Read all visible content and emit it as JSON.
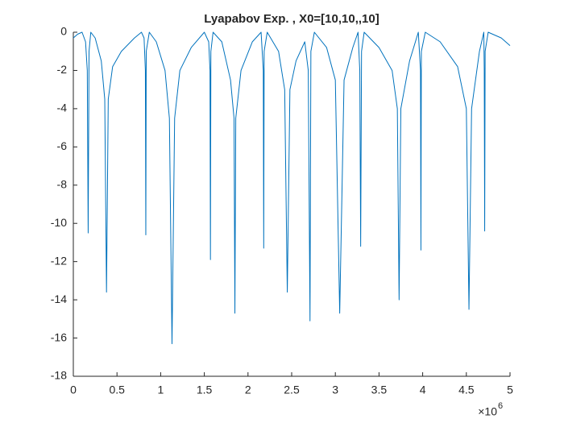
{
  "chart_data": {
    "type": "line",
    "title": "Lyapabov Exp. , X0=[10,10,,10]",
    "x_exponent_base": "×10",
    "x_exponent": "6",
    "x": [
      0,
      50000,
      100000,
      140000,
      160000,
      170000,
      180000,
      200000,
      250000,
      320000,
      360000,
      380000,
      400000,
      450000,
      550000,
      700000,
      780000,
      810000,
      825000,
      830000,
      835000,
      870000,
      950000,
      1050000,
      1100000,
      1130000,
      1160000,
      1220000,
      1350000,
      1500000,
      1550000,
      1565000,
      1570000,
      1575000,
      1600000,
      1700000,
      1800000,
      1840000,
      1850000,
      1860000,
      1920000,
      2050000,
      2150000,
      2175000,
      2180000,
      2185000,
      2220000,
      2350000,
      2420000,
      2450000,
      2480000,
      2550000,
      2650000,
      2690000,
      2710000,
      2720000,
      2760000,
      2900000,
      3000000,
      3050000,
      3100000,
      3200000,
      3260000,
      3280000,
      3290000,
      3300000,
      3330000,
      3500000,
      3650000,
      3710000,
      3730000,
      3750000,
      3850000,
      3950000,
      3975000,
      3980000,
      3985000,
      4030000,
      4200000,
      4400000,
      4500000,
      4530000,
      4560000,
      4650000,
      4700000,
      4705000,
      4710000,
      4715000,
      4750000,
      4900000,
      5000000
    ],
    "series": [
      {
        "color": "#0072bd",
        "values": [
          -0.3,
          -0.1,
          0,
          -0.5,
          -2,
          -10.5,
          -1,
          0,
          -0.3,
          -1.5,
          -3.5,
          -13.6,
          -3.5,
          -1.8,
          -1,
          -0.3,
          0,
          -0.3,
          -2,
          -10.6,
          -1,
          0,
          -0.5,
          -2,
          -4.5,
          -16.3,
          -4.5,
          -2,
          -0.8,
          0,
          -0.5,
          -2,
          -11.9,
          -1,
          0,
          -0.5,
          -2.5,
          -4.5,
          -14.7,
          -4.5,
          -2,
          -0.5,
          0,
          -2,
          -11.3,
          -1,
          0,
          -1,
          -3,
          -13.6,
          -3,
          -1.5,
          -0.5,
          -2,
          -15.1,
          -1,
          0,
          -0.8,
          -2.5,
          -14.7,
          -2.5,
          -0.8,
          0,
          -2,
          -11.2,
          -1,
          0,
          -0.8,
          -2,
          -4,
          -14,
          -4,
          -1.5,
          0,
          -2,
          -11.4,
          -1,
          0,
          -0.5,
          -1.8,
          -4,
          -14.5,
          -4,
          -1,
          0,
          -2,
          -10.4,
          -1,
          0,
          -0.3,
          -0.7
        ]
      }
    ],
    "xlim": [
      0,
      5000000
    ],
    "xticks": [
      0,
      {
        "value": 500000,
        "label": "0.5"
      },
      {
        "value": 1000000,
        "label": "1"
      },
      {
        "value": 1500000,
        "label": "1.5"
      },
      {
        "value": 2000000,
        "label": "2"
      },
      {
        "value": 2500000,
        "label": "2.5"
      },
      {
        "value": 3000000,
        "label": "3"
      },
      {
        "value": 3500000,
        "label": "3.5"
      },
      {
        "value": 4000000,
        "label": "4"
      },
      {
        "value": 4500000,
        "label": "4.5"
      },
      {
        "value": 5000000,
        "label": "5"
      }
    ],
    "ylim": [
      -18,
      0
    ],
    "yticks": [
      0,
      -2,
      -4,
      -6,
      -8,
      -10,
      -12,
      -14,
      -16,
      -18
    ]
  }
}
